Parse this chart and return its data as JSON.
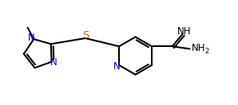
{
  "bg_color": "#ffffff",
  "bond_color": "#000000",
  "bond_width": 1.5,
  "text_color": "#000000",
  "heteroatom_color": "#0000cd",
  "sulfur_color": "#c06000",
  "figsize": [
    2.98,
    1.32
  ],
  "dpi": 100,
  "xlim": [
    0.0,
    5.8
  ],
  "ylim": [
    0.2,
    2.2
  ]
}
